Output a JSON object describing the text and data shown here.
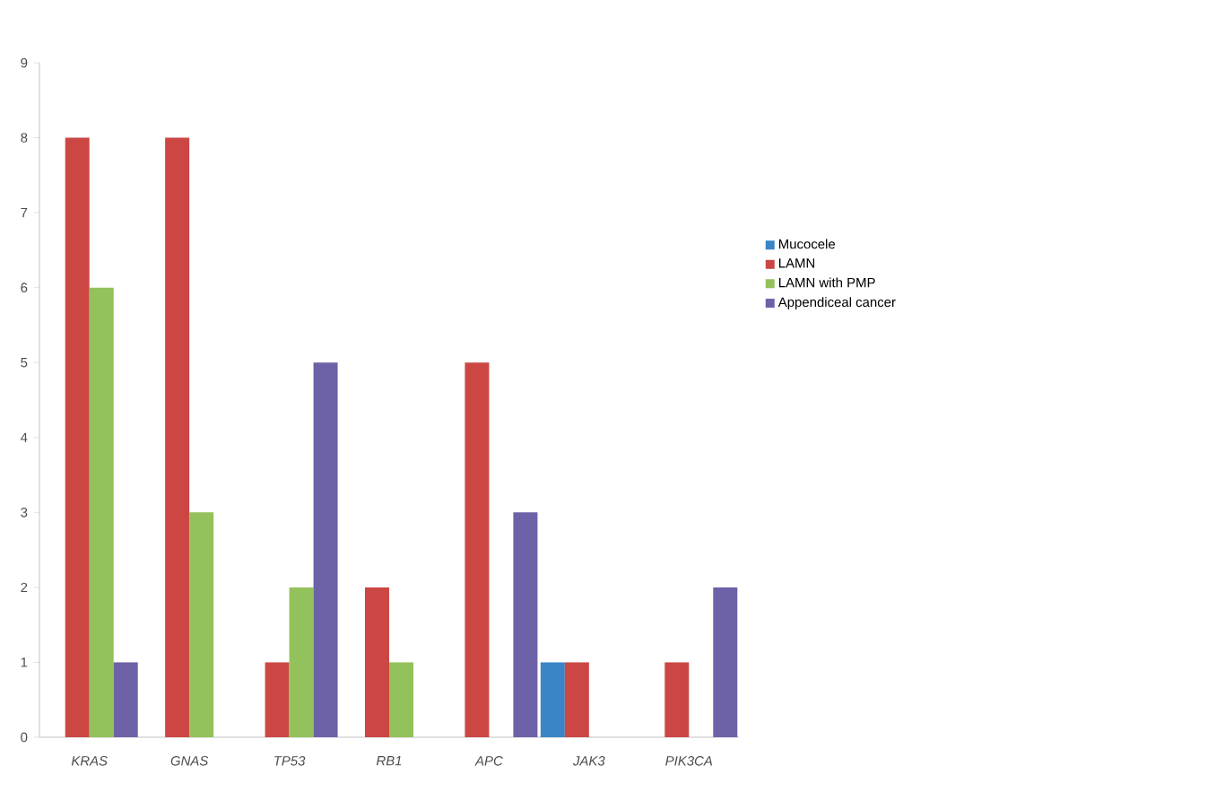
{
  "chart_data": {
    "type": "bar",
    "categories": [
      "KRAS",
      "GNAS",
      "TP53",
      "RB1",
      "APC",
      "JAK3",
      "PIK3CA"
    ],
    "series": [
      {
        "name": "Mucocele",
        "color": "#3a85c6",
        "values": [
          0,
          0,
          0,
          0,
          0,
          1,
          0
        ]
      },
      {
        "name": "LAMN",
        "color": "#cc4744",
        "values": [
          8,
          8,
          1,
          2,
          5,
          1,
          1
        ]
      },
      {
        "name": "LAMN with PMP",
        "color": "#93c15b",
        "values": [
          6,
          3,
          2,
          1,
          0,
          0,
          0
        ]
      },
      {
        "name": "Appendiceal cancer",
        "color": "#6d61a8",
        "values": [
          1,
          0,
          5,
          0,
          3,
          0,
          2
        ]
      }
    ],
    "ylim": [
      0,
      9
    ],
    "yticks": [
      0,
      1,
      2,
      3,
      4,
      5,
      6,
      7,
      8,
      9
    ],
    "grid": false,
    "legend": "right"
  }
}
